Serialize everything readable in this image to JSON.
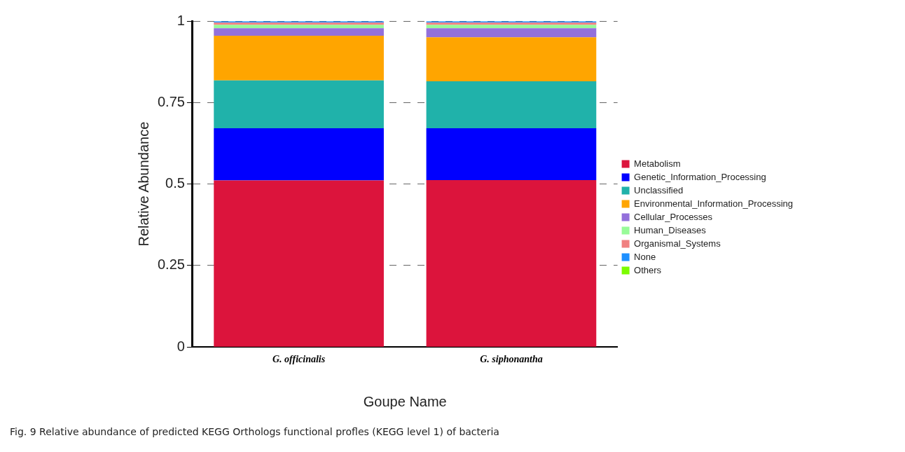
{
  "chart_data": {
    "type": "bar",
    "stacked": true,
    "xlabel": "Goupe Name",
    "ylabel": "Relative Abundance",
    "categories": [
      "G. officinalis",
      "G. siphonantha"
    ],
    "series": [
      {
        "name": "Metabolism",
        "color": "#dc143c",
        "values": [
          0.511,
          0.512
        ]
      },
      {
        "name": "Genetic_Information_Processing",
        "color": "#0000ff",
        "values": [
          0.16,
          0.159
        ]
      },
      {
        "name": "Unclassified",
        "color": "#20b2aa",
        "values": [
          0.147,
          0.144
        ]
      },
      {
        "name": "Environmental_Information_Processing",
        "color": "#ffa500",
        "values": [
          0.137,
          0.135
        ]
      },
      {
        "name": "Cellular_Processes",
        "color": "#9370db",
        "values": [
          0.023,
          0.028
        ]
      },
      {
        "name": "Human_Diseases",
        "color": "#98fb98",
        "values": [
          0.01,
          0.01
        ]
      },
      {
        "name": "Organismal_Systems",
        "color": "#f08080",
        "values": [
          0.007,
          0.007
        ]
      },
      {
        "name": "None",
        "color": "#1e90ff",
        "values": [
          0.004,
          0.004
        ]
      },
      {
        "name": "Others",
        "color": "#7cfc00",
        "values": [
          null,
          null
        ]
      }
    ],
    "ylim": [
      0,
      1
    ],
    "yticks": [
      0,
      0.25,
      0.5,
      0.75,
      1
    ],
    "grid": "y",
    "legend": "right",
    "annotations": [
      "Fig. 9 Relative abundance of predicted KEGG Orthologs functional profles (KEGG level 1) of bacteria"
    ]
  }
}
